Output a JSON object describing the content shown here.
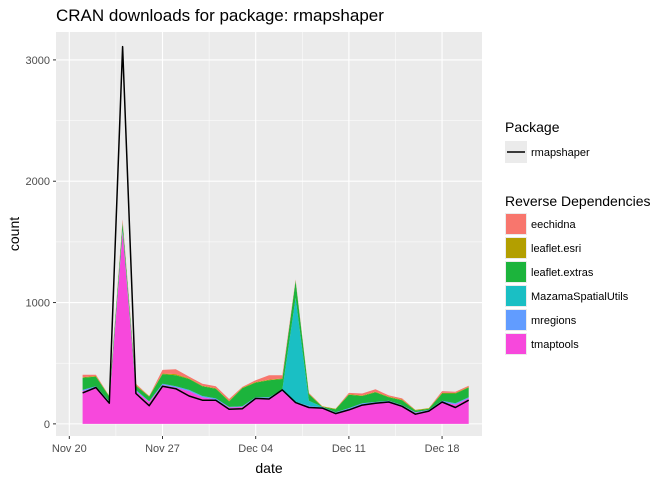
{
  "chart_data": {
    "type": "area",
    "title": "CRAN downloads for package: rmapshaper",
    "xlabel": "date",
    "ylabel": "count",
    "x_tick_labels": [
      "Nov 20",
      "Nov 27",
      "Dec 04",
      "Dec 11",
      "Dec 18"
    ],
    "x_tick_dates": [
      "2017-11-20",
      "2017-11-27",
      "2017-12-04",
      "2017-12-11",
      "2017-12-18"
    ],
    "x_range": [
      "2017-11-19",
      "2017-12-21"
    ],
    "y_ticks": [
      0,
      1000,
      2000,
      3000
    ],
    "y_tick_labels": [
      "0",
      "1000",
      "2000",
      "3000"
    ],
    "ylim": [
      -100,
      3230
    ],
    "grid": true,
    "legend_placement": "right",
    "dates": [
      "2017-11-21",
      "2017-11-22",
      "2017-11-23",
      "2017-11-24",
      "2017-11-25",
      "2017-11-26",
      "2017-11-27",
      "2017-11-28",
      "2017-11-29",
      "2017-11-30",
      "2017-12-01",
      "2017-12-02",
      "2017-12-03",
      "2017-12-04",
      "2017-12-05",
      "2017-12-06",
      "2017-12-07",
      "2017-12-08",
      "2017-12-09",
      "2017-12-10",
      "2017-12-11",
      "2017-12-12",
      "2017-12-13",
      "2017-12-14",
      "2017-12-15",
      "2017-12-16",
      "2017-12-17",
      "2017-12-18",
      "2017-12-19",
      "2017-12-20"
    ],
    "line_series": {
      "name": "rmapshaper",
      "color": "#000000",
      "values": [
        255,
        300,
        170,
        3110,
        250,
        150,
        310,
        290,
        230,
        195,
        195,
        120,
        125,
        210,
        205,
        280,
        175,
        135,
        130,
        85,
        115,
        155,
        170,
        180,
        145,
        80,
        105,
        180,
        135,
        195
      ]
    },
    "area_series": [
      {
        "name": "tmaptools",
        "color": "#F748DC",
        "values": [
          270,
          300,
          180,
          1580,
          270,
          180,
          320,
          300,
          270,
          220,
          200,
          135,
          140,
          210,
          210,
          270,
          170,
          140,
          130,
          90,
          120,
          160,
          170,
          180,
          150,
          90,
          110,
          180,
          160,
          210
        ]
      },
      {
        "name": "mregions",
        "color": "#619CFF",
        "values": [
          10,
          10,
          5,
          20,
          10,
          5,
          10,
          10,
          10,
          10,
          10,
          5,
          5,
          10,
          10,
          10,
          10,
          10,
          5,
          5,
          10,
          10,
          10,
          10,
          5,
          5,
          5,
          10,
          10,
          10
        ]
      },
      {
        "name": "MazamaSpatialUtils",
        "color": "#1ABFC4",
        "values": [
          0,
          0,
          0,
          0,
          0,
          0,
          0,
          0,
          0,
          0,
          0,
          0,
          0,
          0,
          0,
          0,
          860,
          40,
          5,
          0,
          0,
          0,
          0,
          0,
          0,
          0,
          0,
          0,
          0,
          0
        ]
      },
      {
        "name": "leaflet.extras",
        "color": "#1CB43C",
        "values": [
          100,
          80,
          40,
          60,
          35,
          40,
          80,
          90,
          90,
          80,
          80,
          45,
          150,
          120,
          140,
          90,
          140,
          55,
          0,
          25,
          110,
          60,
          80,
          30,
          40,
          15,
          10,
          60,
          80,
          80
        ]
      },
      {
        "name": "leaflet.esri",
        "color": "#B39F00",
        "values": [
          5,
          5,
          5,
          5,
          5,
          5,
          5,
          10,
          5,
          5,
          5,
          5,
          5,
          5,
          5,
          5,
          5,
          5,
          5,
          5,
          5,
          5,
          5,
          5,
          5,
          5,
          5,
          5,
          5,
          5
        ]
      },
      {
        "name": "eechidna",
        "color": "#F8766D",
        "values": [
          20,
          10,
          0,
          20,
          10,
          0,
          30,
          40,
          15,
          15,
          15,
          15,
          5,
          15,
          35,
          25,
          5,
          5,
          0,
          0,
          10,
          15,
          20,
          10,
          10,
          0,
          0,
          15,
          10,
          10
        ]
      }
    ],
    "legend": {
      "line_title": "Package",
      "area_title": "Reverse Dependencies",
      "area_order": [
        "eechidna",
        "leaflet.esri",
        "leaflet.extras",
        "MazamaSpatialUtils",
        "mregions",
        "tmaptools"
      ]
    },
    "colors": {
      "panel_background": "#EBEBEB",
      "grid": "#FFFFFF",
      "tick": "#333333"
    }
  }
}
